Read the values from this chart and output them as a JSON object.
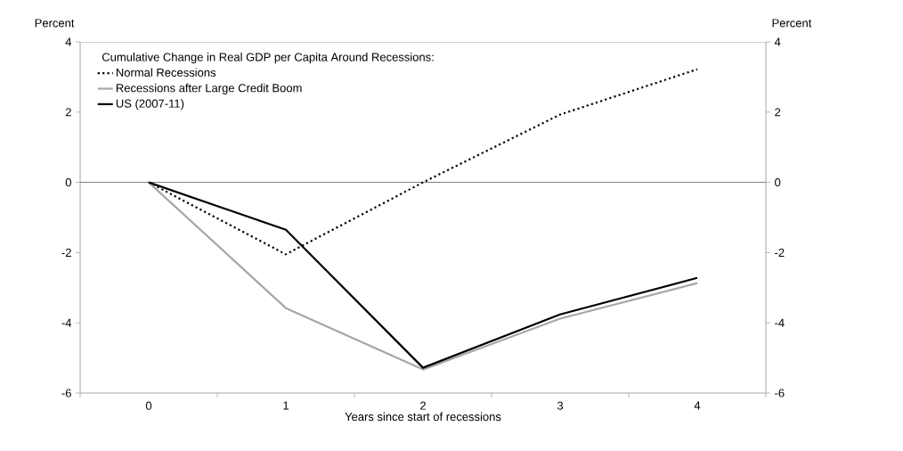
{
  "chart_data": {
    "type": "line",
    "legend_title": "Cumulative Change in Real GDP per Capita Around Recessions:",
    "xlabel": "Years since start of recessions",
    "ylabel": "Percent",
    "y2label": "Percent",
    "categories": [
      "0",
      "1",
      "2",
      "3",
      "4"
    ],
    "series": [
      {
        "name": "Normal Recessions",
        "color": "#000000",
        "line_style": "dotted",
        "values": [
          0,
          -2.05,
          0,
          1.93,
          3.22
        ]
      },
      {
        "name": "Recessions after Large Credit Boom",
        "color": "#a6a6a6",
        "line_style": "solid",
        "values": [
          0,
          -3.58,
          -5.33,
          -3.88,
          -2.87
        ]
      },
      {
        "name": "US (2007-11)",
        "color": "#000000",
        "line_style": "solid",
        "values": [
          0,
          -1.35,
          -5.28,
          -3.76,
          -2.72
        ]
      }
    ],
    "ylim": [
      -6,
      4
    ],
    "yticks": [
      -6,
      -4,
      -2,
      0,
      2,
      4
    ],
    "y2lim": [
      -6,
      4
    ],
    "y2ticks": [
      -6,
      -4,
      -2,
      0,
      2,
      4
    ],
    "ref_lines": [
      {
        "axis": "y",
        "value": 0,
        "color": "#808080"
      }
    ],
    "legend": "top left",
    "marker": "none",
    "grid": false
  }
}
